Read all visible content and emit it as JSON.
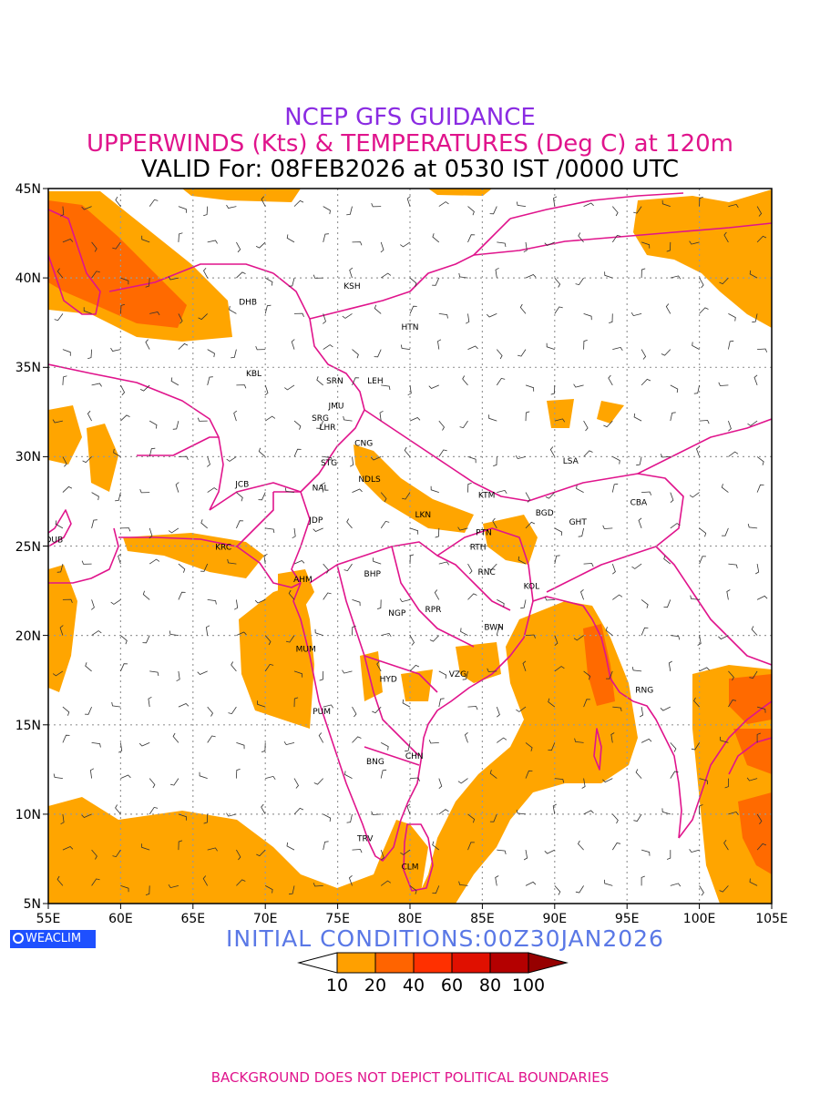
{
  "header": {
    "line1": "NCEP GFS GUIDANCE",
    "line2": "UPPERWINDS (Kts) & TEMPERATURES (Deg C) at 120m",
    "line3": "VALID For: 08FEB2026 at 0530 IST /0000 UTC"
  },
  "map": {
    "lon_range": [
      55,
      105
    ],
    "lat_range": [
      5,
      45
    ],
    "x_ticks": [
      "55E",
      "60E",
      "65E",
      "70E",
      "75E",
      "80E",
      "85E",
      "90E",
      "95E",
      "100E",
      "105E"
    ],
    "y_ticks": [
      "45N",
      "40N",
      "35N",
      "30N",
      "25N",
      "20N",
      "15N",
      "10N",
      "5N"
    ],
    "colors": {
      "coast": "#e0148c",
      "shade_low": "#ffa500",
      "shade_mid": "#ff6a00",
      "grid": "#999999",
      "temp": "#2040c0"
    },
    "cities": [
      {
        "name": "KSH",
        "lon": 76.0,
        "lat": 39.4
      },
      {
        "name": "DHB",
        "lon": 68.8,
        "lat": 38.5
      },
      {
        "name": "HTN",
        "lon": 80.0,
        "lat": 37.1
      },
      {
        "name": "KBL",
        "lon": 69.2,
        "lat": 34.5
      },
      {
        "name": "SRN",
        "lon": 74.8,
        "lat": 34.1
      },
      {
        "name": "LEH",
        "lon": 77.6,
        "lat": 34.1
      },
      {
        "name": "JMU",
        "lon": 74.9,
        "lat": 32.7
      },
      {
        "name": "SRG",
        "lon": 73.8,
        "lat": 32.0
      },
      {
        "name": "LHR",
        "lon": 74.3,
        "lat": 31.5
      },
      {
        "name": "CNG",
        "lon": 76.8,
        "lat": 30.6
      },
      {
        "name": "STG",
        "lon": 74.4,
        "lat": 29.5
      },
      {
        "name": "NDLS",
        "lon": 77.2,
        "lat": 28.6
      },
      {
        "name": "JCB",
        "lon": 68.4,
        "lat": 28.3
      },
      {
        "name": "NAL",
        "lon": 73.8,
        "lat": 28.1
      },
      {
        "name": "LSA",
        "lon": 91.1,
        "lat": 29.6
      },
      {
        "name": "KTM",
        "lon": 85.3,
        "lat": 27.7
      },
      {
        "name": "CBA",
        "lon": 95.8,
        "lat": 27.3
      },
      {
        "name": "BGD",
        "lon": 89.3,
        "lat": 26.7
      },
      {
        "name": "GHT",
        "lon": 91.6,
        "lat": 26.2
      },
      {
        "name": "LKN",
        "lon": 80.9,
        "lat": 26.6
      },
      {
        "name": "JDP",
        "lon": 73.5,
        "lat": 26.3
      },
      {
        "name": "PTN",
        "lon": 85.1,
        "lat": 25.6
      },
      {
        "name": "DUB",
        "lon": 55.4,
        "lat": 25.2
      },
      {
        "name": "KRC",
        "lon": 67.1,
        "lat": 24.8
      },
      {
        "name": "RTH",
        "lon": 84.7,
        "lat": 24.8
      },
      {
        "name": "BHP",
        "lon": 77.4,
        "lat": 23.3
      },
      {
        "name": "AHM",
        "lon": 72.6,
        "lat": 23.0
      },
      {
        "name": "RNC",
        "lon": 85.3,
        "lat": 23.4
      },
      {
        "name": "KOL",
        "lon": 88.4,
        "lat": 22.6
      },
      {
        "name": "NGP",
        "lon": 79.1,
        "lat": 21.1
      },
      {
        "name": "RPR",
        "lon": 81.6,
        "lat": 21.3
      },
      {
        "name": "BWN",
        "lon": 85.8,
        "lat": 20.3
      },
      {
        "name": "MUM",
        "lon": 72.8,
        "lat": 19.1
      },
      {
        "name": "HYD",
        "lon": 78.5,
        "lat": 17.4
      },
      {
        "name": "VZG",
        "lon": 83.3,
        "lat": 17.7
      },
      {
        "name": "RNG",
        "lon": 96.2,
        "lat": 16.8
      },
      {
        "name": "PUM",
        "lon": 73.9,
        "lat": 15.6
      },
      {
        "name": "CHN",
        "lon": 80.3,
        "lat": 13.1
      },
      {
        "name": "BNG",
        "lon": 77.6,
        "lat": 12.8
      },
      {
        "name": "TRV",
        "lon": 76.9,
        "lat": 8.5
      },
      {
        "name": "CLM",
        "lon": 80.0,
        "lat": 6.9
      }
    ]
  },
  "colorbar": {
    "labels": [
      "10",
      "20",
      "40",
      "60",
      "80",
      "100"
    ],
    "colors": [
      "#ffffff",
      "#ffa000",
      "#ff6400",
      "#ff3000",
      "#e01000",
      "#b40000",
      "#960000"
    ]
  },
  "logo": {
    "text": "WEACLIM"
  },
  "initial_conditions": "INITIAL CONDITIONS:00Z30JAN2026",
  "footer": "BACKGROUND DOES NOT DEPICT POLITICAL BOUNDARIES"
}
